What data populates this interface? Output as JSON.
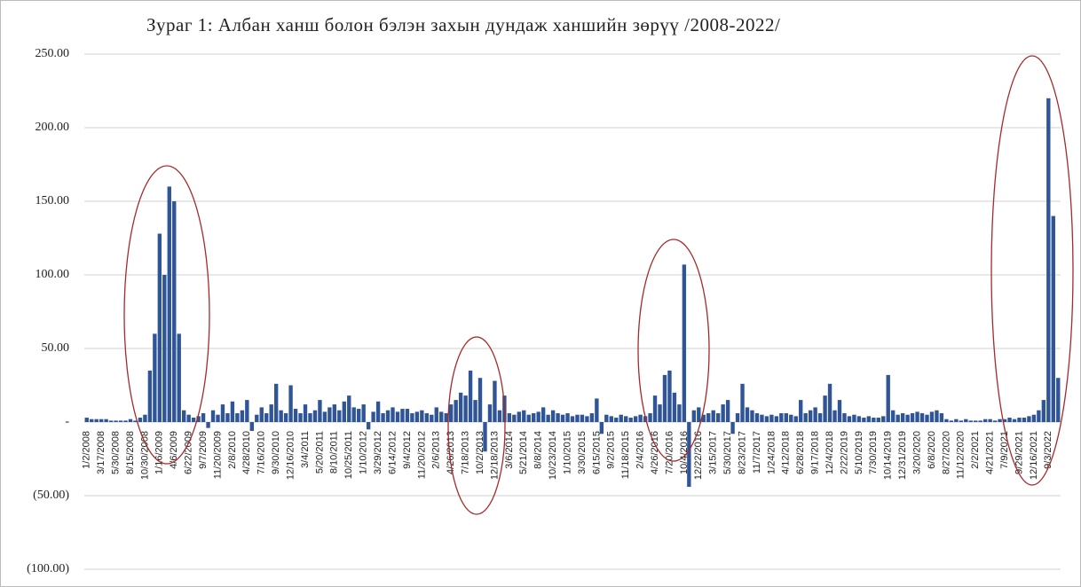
{
  "chart_data": {
    "type": "bar",
    "title": "Зураг 1: Албан ханш болон бэлэн захын дундаж ханшийн зөрүү /2008-2022/",
    "color": "#2f5597",
    "grid": true,
    "ylim": [
      -100,
      250
    ],
    "yticks": [
      {
        "value": -100,
        "label": "(100.00)"
      },
      {
        "value": -50,
        "label": "(50.00)"
      },
      {
        "value": 0,
        "label": "-"
      },
      {
        "value": 50,
        "label": "50.00"
      },
      {
        "value": 100,
        "label": "100.00"
      },
      {
        "value": 150,
        "label": "150.00"
      },
      {
        "value": 200,
        "label": "200.00"
      },
      {
        "value": 250,
        "label": "250.00"
      }
    ],
    "categories": [
      "1/2/2008",
      null,
      null,
      "3/17/2008",
      null,
      null,
      "5/30/2008",
      null,
      null,
      "8/15/2008",
      null,
      null,
      "10/30/2008",
      null,
      null,
      "1/16/2009",
      null,
      null,
      "4/6/2009",
      null,
      null,
      "6/22/2009",
      null,
      null,
      "9/7/2009",
      null,
      null,
      "11/20/2009",
      null,
      null,
      "2/8/2010",
      null,
      null,
      "4/28/2010",
      null,
      null,
      "7/16/2010",
      null,
      null,
      "9/30/2010",
      null,
      null,
      "12/16/2010",
      null,
      null,
      "3/4/2011",
      null,
      null,
      "5/20/2011",
      null,
      null,
      "8/10/2011",
      null,
      null,
      "10/25/2011",
      null,
      null,
      "1/10/2012",
      null,
      null,
      "3/29/2012",
      null,
      null,
      "6/14/2012",
      null,
      null,
      "9/4/2012",
      null,
      null,
      "11/20/2012",
      null,
      null,
      "2/6/2013",
      null,
      null,
      "4/26/2013",
      null,
      null,
      "7/18/2013",
      null,
      null,
      "10/2/2013",
      null,
      null,
      "12/18/2013",
      null,
      null,
      "3/6/2014",
      null,
      null,
      "5/21/2014",
      null,
      null,
      "8/8/2014",
      null,
      null,
      "10/23/2014",
      null,
      null,
      "1/10/2015",
      null,
      null,
      "3/30/2015",
      null,
      null,
      "6/15/2015",
      null,
      null,
      "9/2/2015",
      null,
      null,
      "11/18/2015",
      null,
      null,
      "2/4/2016",
      null,
      null,
      "4/26/2016",
      null,
      null,
      "7/20/2016",
      null,
      null,
      "10/4/2016",
      null,
      null,
      "12/22/2016",
      null,
      null,
      "3/15/2017",
      null,
      null,
      "5/30/2017",
      null,
      null,
      "8/23/2017",
      null,
      null,
      "11/7/2017",
      null,
      null,
      "1/24/2018",
      null,
      null,
      "4/12/2018",
      null,
      null,
      "6/28/2018",
      null,
      null,
      "9/17/2018",
      null,
      null,
      "12/4/2018",
      null,
      null,
      "2/22/2019",
      null,
      null,
      "5/10/2019",
      null,
      null,
      "7/30/2019",
      null,
      null,
      "10/14/2019",
      null,
      null,
      "12/31/2019",
      null,
      null,
      "3/20/2020",
      null,
      null,
      "6/8/2020",
      null,
      null,
      "8/27/2020",
      null,
      null,
      "11/12/2020",
      null,
      null,
      "2/2/2021",
      null,
      null,
      "4/21/2021",
      null,
      null,
      "7/9/2021",
      null,
      null,
      "9/29/2021",
      null,
      null,
      "12/16/2021",
      null,
      null,
      "9/3/2022",
      null,
      null
    ],
    "values": [
      3,
      2,
      2,
      2,
      2,
      1,
      1,
      1,
      1,
      2,
      1,
      3,
      5,
      35,
      60,
      128,
      100,
      160,
      150,
      60,
      8,
      5,
      3,
      4,
      6,
      -4,
      8,
      5,
      12,
      6,
      14,
      6,
      8,
      15,
      -6,
      5,
      10,
      6,
      12,
      26,
      8,
      6,
      25,
      9,
      6,
      12,
      6,
      8,
      15,
      7,
      10,
      12,
      8,
      14,
      18,
      10,
      9,
      12,
      -5,
      7,
      14,
      6,
      8,
      10,
      7,
      9,
      9,
      6,
      7,
      8,
      6,
      5,
      10,
      7,
      6,
      12,
      15,
      20,
      18,
      35,
      15,
      30,
      -20,
      12,
      28,
      8,
      18,
      6,
      5,
      7,
      8,
      5,
      6,
      7,
      10,
      5,
      8,
      6,
      5,
      6,
      4,
      5,
      5,
      4,
      6,
      16,
      -8,
      5,
      4,
      3,
      5,
      4,
      3,
      4,
      5,
      4,
      6,
      18,
      12,
      32,
      35,
      20,
      12,
      107,
      -44,
      8,
      10,
      5,
      6,
      8,
      6,
      12,
      15,
      -8,
      6,
      26,
      10,
      8,
      6,
      5,
      4,
      5,
      4,
      6,
      6,
      5,
      4,
      15,
      6,
      8,
      10,
      6,
      18,
      26,
      8,
      15,
      6,
      4,
      5,
      4,
      3,
      4,
      3,
      3,
      4,
      32,
      8,
      5,
      6,
      5,
      6,
      7,
      6,
      5,
      7,
      8,
      6,
      2,
      1,
      2,
      1,
      2,
      1,
      1,
      1,
      2,
      2,
      1,
      2,
      2,
      3,
      2,
      3,
      3,
      4,
      5,
      8,
      15,
      220,
      140,
      30
    ]
  }
}
